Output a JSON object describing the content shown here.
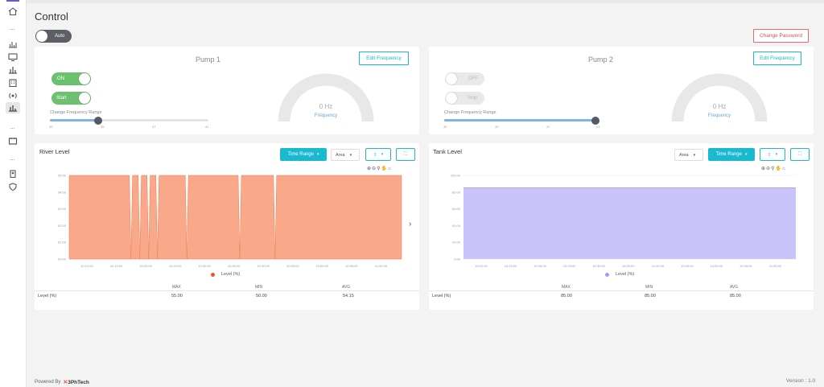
{
  "page": {
    "title": "Control"
  },
  "auto_toggle": {
    "label": "Auto"
  },
  "change_password": {
    "label": "Change Password"
  },
  "pump1": {
    "title": "Pump 1",
    "edit_label": "Edit Frequency",
    "power_label": "ON",
    "run_label": "Start",
    "slider_caption": "Change Frequency Range",
    "slider_ticks": [
      "30",
      "35",
      "37",
      "41"
    ],
    "gauge_value": "0 Hz",
    "gauge_label": "Frequency"
  },
  "pump2": {
    "title": "Pump 2",
    "edit_label": "Edit Frequency",
    "power_label": "OFF",
    "run_label": "Stop",
    "slider_caption": "Change Frequency Range",
    "slider_ticks": [
      "30",
      "33",
      "37",
      "41"
    ],
    "gauge_value": "0 Hz",
    "gauge_label": "Frequency"
  },
  "river": {
    "title": "River Level",
    "time_range_label": "Time Range",
    "chart_type_value": "Area",
    "legend": "Level (%)",
    "stats": {
      "headers": [
        "MAX",
        "MIN",
        "AVG"
      ],
      "row_label": "Level (%)",
      "max": "55.00",
      "min": "50.00",
      "avg": "54.15"
    }
  },
  "tank": {
    "title": "Tank Level",
    "time_range_label": "Time Range",
    "chart_type_value": "Area",
    "legend": "Level (%)",
    "stats": {
      "headers": [
        "MAX",
        "MIN",
        "AVG"
      ],
      "row_label": "Level (%)",
      "max": "85.00",
      "min": "85.00",
      "avg": "85.00"
    }
  },
  "chart_data": [
    {
      "type": "area",
      "title": "River Level",
      "x": [
        "10:10:00",
        "10:15:00",
        "10:20:00",
        "10:25:00",
        "10:30:00",
        "10:35:00",
        "10:40:00",
        "10:45:00",
        "10:50:00",
        "10:55:00",
        "11:00:00"
      ],
      "y_ticks": [
        "55.00",
        "54.00",
        "53.00",
        "52.00",
        "51.00",
        "50.00"
      ],
      "ylim": [
        50,
        55
      ],
      "series": [
        {
          "name": "Level (%)",
          "color": "#f9a88a",
          "values": [
            55,
            55,
            55,
            55,
            55,
            55,
            55,
            55,
            55,
            55,
            55
          ]
        }
      ],
      "drops_to_min_at": [
        "10:17:30",
        "10:19:00",
        "10:20:30",
        "10:22:00",
        "10:27:00",
        "10:36:00",
        "10:42:00"
      ]
    },
    {
      "type": "area",
      "title": "Tank Level",
      "x": [
        "10:10:00",
        "10:15:00",
        "10:20:00",
        "10:25:00",
        "10:30:00",
        "10:35:00",
        "10:40:00",
        "10:45:00",
        "10:50:00",
        "10:55:00",
        "11:00:00"
      ],
      "y_ticks": [
        "100.00",
        "80.00",
        "60.00",
        "40.00",
        "20.00",
        "0.00"
      ],
      "ylim": [
        0,
        100
      ],
      "series": [
        {
          "name": "Level (%)",
          "color": "#c9c5fb",
          "values": [
            85,
            85,
            85,
            85,
            85,
            85,
            85,
            85,
            85,
            85,
            85
          ]
        }
      ]
    }
  ],
  "footer": {
    "powered_by": "Powered By",
    "brand": "3PhTech",
    "version": "Version : 1.0"
  },
  "colors": {
    "teal": "#1bb9cf",
    "green": "#6cc070",
    "danger": "#e86a6a",
    "river_fill": "#f9a88a",
    "tank_fill": "#c9c5fb"
  }
}
